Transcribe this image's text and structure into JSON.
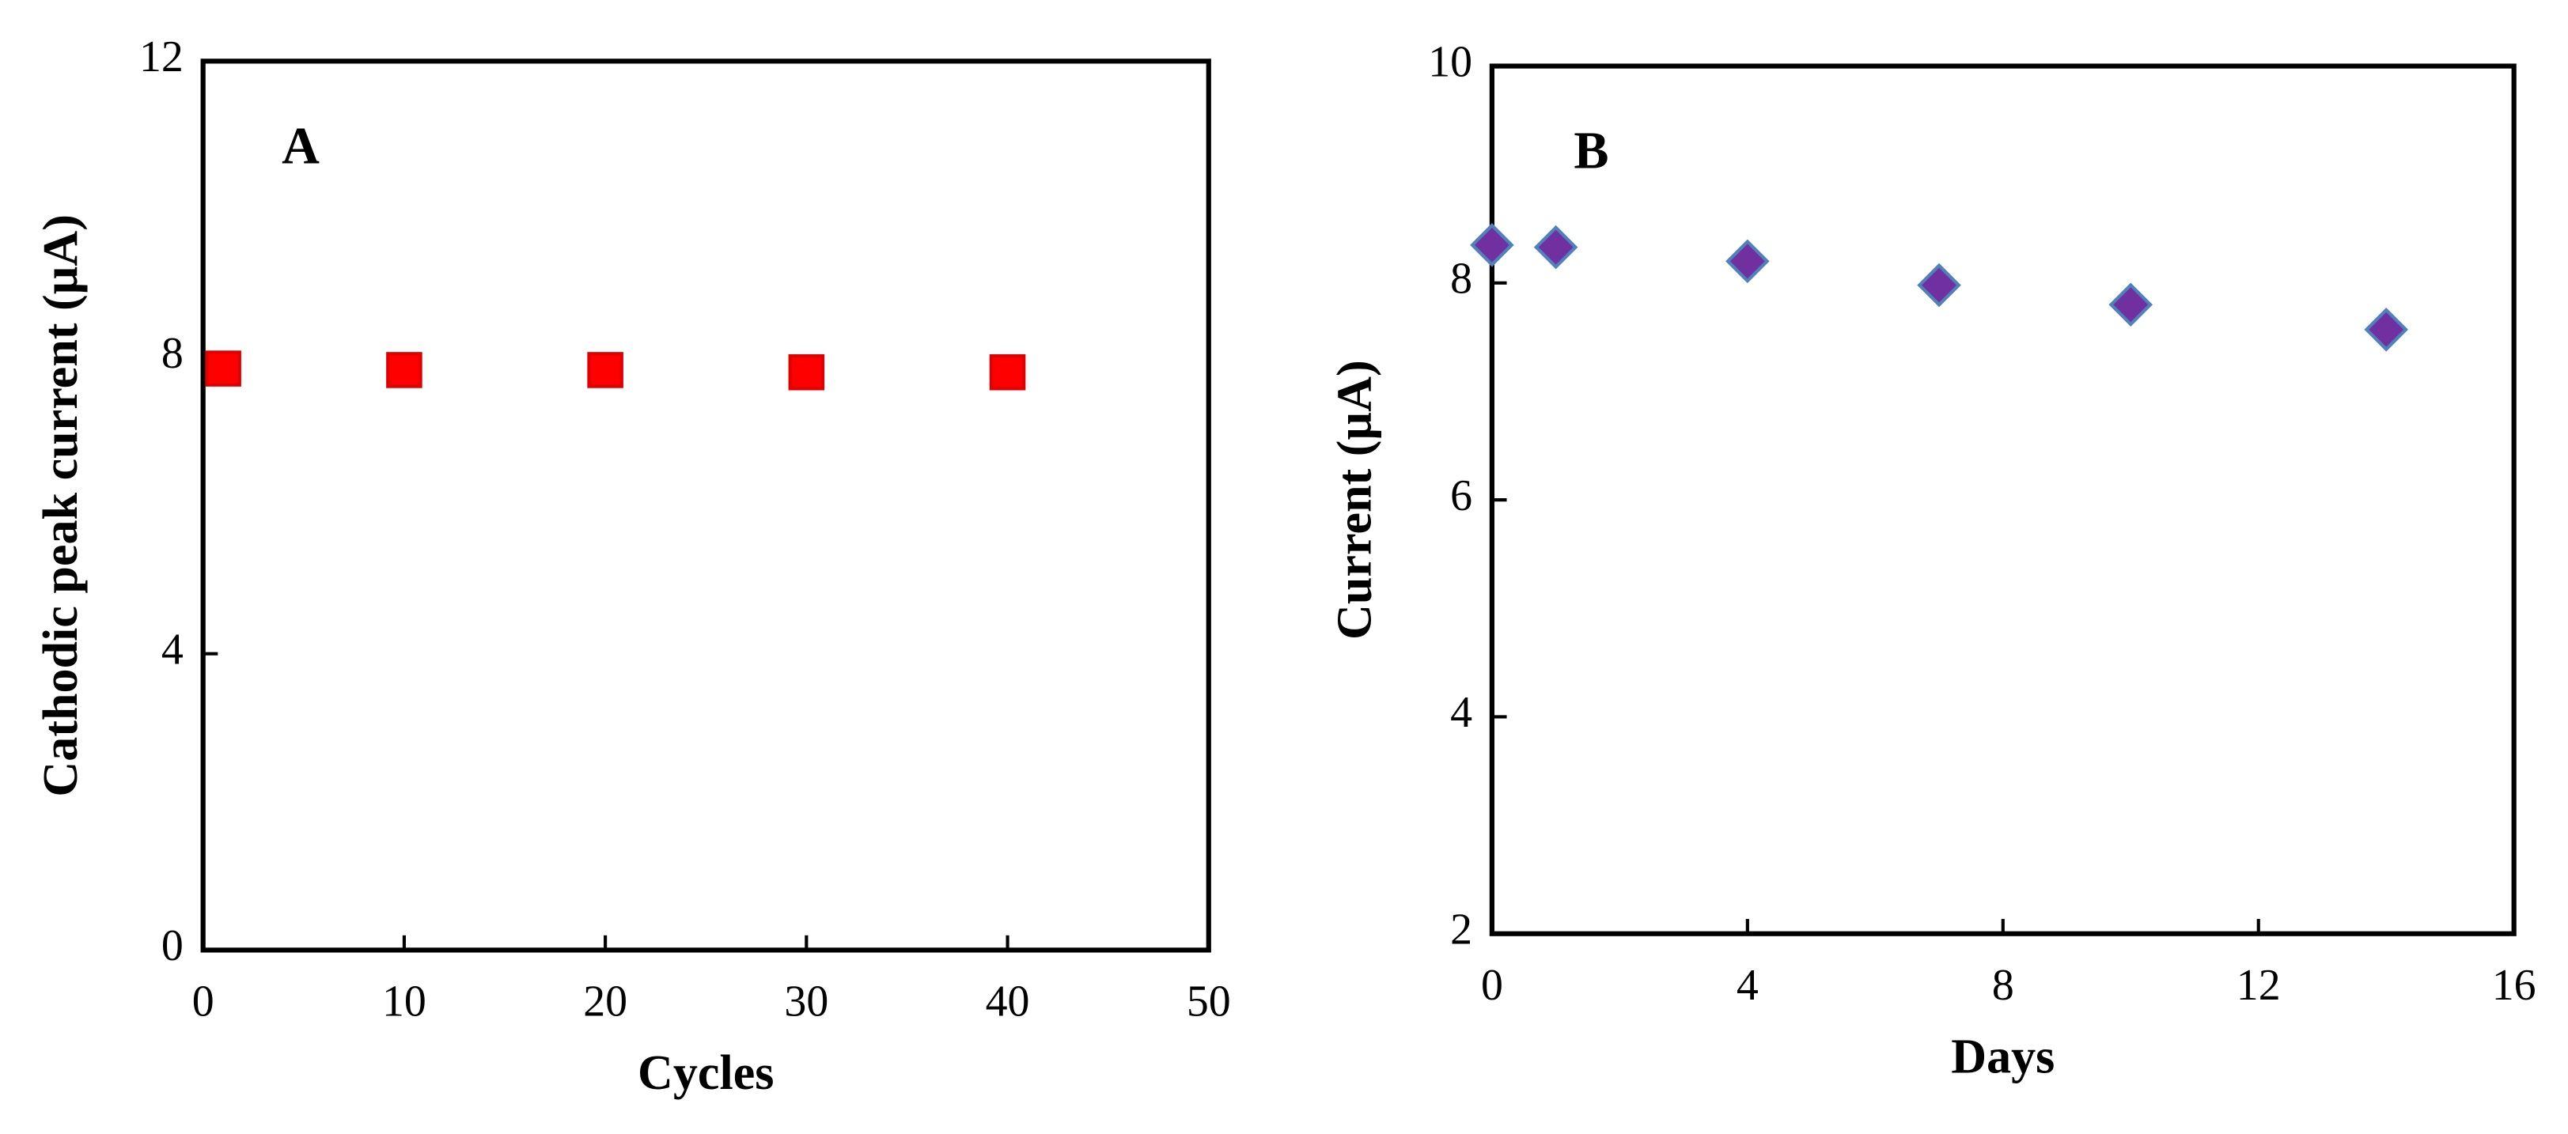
{
  "chart_data": [
    {
      "type": "scatter",
      "title": "A",
      "x_label": "Cycles",
      "y_label": "Cathodic peak current  (µA)",
      "x": [
        1,
        10,
        20,
        30,
        40
      ],
      "values": [
        7.85,
        7.83,
        7.83,
        7.8,
        7.8
      ],
      "color": "#ff0000",
      "edge_color": "#e00000",
      "marker": "square",
      "xlim": [
        0,
        50
      ],
      "xticks": [
        0,
        10,
        20,
        30,
        40,
        50
      ],
      "ylim": [
        0,
        12
      ],
      "yticks": [
        0,
        4,
        8,
        12
      ]
    },
    {
      "type": "scatter",
      "title": "B",
      "x_label": "Days",
      "y_label": "Current (µA)",
      "x": [
        0,
        1,
        4,
        7,
        10,
        14
      ],
      "values": [
        8.35,
        8.33,
        8.2,
        7.98,
        7.8,
        7.57
      ],
      "color": "#7030a0",
      "edge_color": "#4f81bd",
      "marker": "diamond",
      "xlim": [
        0,
        16
      ],
      "xticks": [
        0,
        4,
        8,
        12,
        16
      ],
      "ylim": [
        2,
        10
      ],
      "yticks": [
        2,
        4,
        6,
        8,
        10
      ]
    }
  ]
}
